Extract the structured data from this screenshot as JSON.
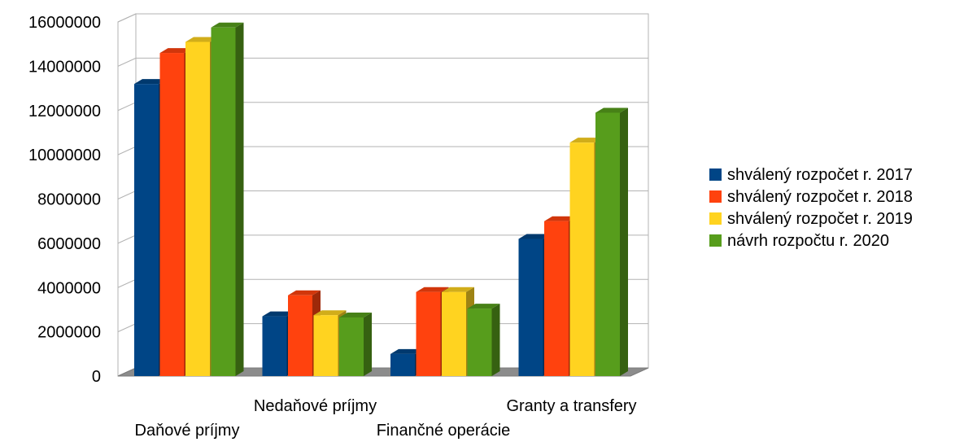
{
  "chart_data": {
    "type": "bar",
    "categories": [
      "Daňové príjmy",
      "Nedaňové príjmy",
      "Finančné operácie",
      "Granty a transfery"
    ],
    "series": [
      {
        "name": "shválený rozpočet r. 2017",
        "color": "#004586",
        "values": [
          13200000,
          2700000,
          1000000,
          6200000
        ]
      },
      {
        "name": "shválený rozpočet r. 2018",
        "color": "#ff420e",
        "values": [
          14600000,
          3650000,
          3800000,
          7000000
        ]
      },
      {
        "name": "shválený rozpočet r. 2019",
        "color": "#ffd320",
        "values": [
          15100000,
          2750000,
          3800000,
          10550000
        ]
      },
      {
        "name": "návrh rozpočtu r. 2020",
        "color": "#579d1c",
        "values": [
          15750000,
          2650000,
          3050000,
          11900000
        ]
      }
    ],
    "yticks": [
      "0",
      "2000000",
      "4000000",
      "6000000",
      "8000000",
      "10000000",
      "12000000",
      "14000000",
      "16000000"
    ],
    "ylim": [
      0,
      16000000
    ],
    "grid": true,
    "legend": "right",
    "three_d": true
  }
}
